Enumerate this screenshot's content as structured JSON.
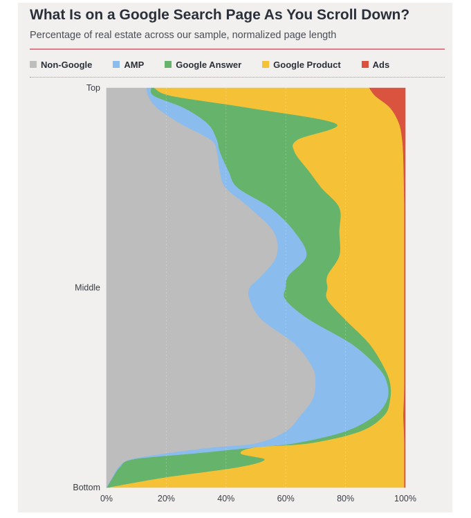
{
  "chart_data": {
    "type": "area",
    "title": "What Is on a Google Search Page As You Scroll Down?",
    "subtitle": "Percentage of real estate across our sample, normalized page length",
    "orientation": "vertical-stacked-100",
    "y_ticks": [
      "Top",
      "Middle",
      "Bottom"
    ],
    "x_ticks": [
      "0%",
      "20%",
      "40%",
      "60%",
      "80%",
      "100%"
    ],
    "xlim": [
      0,
      100
    ],
    "position_unit": "normalized page position (0 = Top, 1 = Bottom)",
    "legend_position": "top",
    "series": [
      {
        "name": "Non-Google",
        "color": "#bdbdbd",
        "points": [
          [
            0,
            13.5
          ],
          [
            0.02,
            14
          ],
          [
            0.05,
            17
          ],
          [
            0.09,
            25
          ],
          [
            0.13,
            35
          ],
          [
            0.16,
            37
          ],
          [
            0.21,
            38
          ],
          [
            0.25,
            40
          ],
          [
            0.3,
            48
          ],
          [
            0.36,
            56
          ],
          [
            0.42,
            57
          ],
          [
            0.47,
            52
          ],
          [
            0.5,
            48
          ],
          [
            0.53,
            48
          ],
          [
            0.58,
            52
          ],
          [
            0.64,
            63
          ],
          [
            0.7,
            69
          ],
          [
            0.74,
            70
          ],
          [
            0.78,
            69
          ],
          [
            0.82,
            65
          ],
          [
            0.86,
            60
          ],
          [
            0.89,
            50
          ],
          [
            0.9,
            36
          ],
          [
            0.915,
            20
          ],
          [
            0.93,
            8
          ],
          [
            0.95,
            4
          ],
          [
            0.975,
            2
          ],
          [
            1,
            0
          ]
        ]
      },
      {
        "name": "AMP",
        "color": "#8bbcee",
        "points": [
          [
            0,
            15
          ],
          [
            0.02,
            16
          ],
          [
            0.05,
            26
          ],
          [
            0.09,
            34
          ],
          [
            0.13,
            37
          ],
          [
            0.16,
            38
          ],
          [
            0.21,
            41
          ],
          [
            0.25,
            44
          ],
          [
            0.3,
            55
          ],
          [
            0.36,
            63
          ],
          [
            0.42,
            67
          ],
          [
            0.47,
            61
          ],
          [
            0.5,
            60
          ],
          [
            0.53,
            60
          ],
          [
            0.58,
            68
          ],
          [
            0.64,
            82
          ],
          [
            0.7,
            91
          ],
          [
            0.74,
            94
          ],
          [
            0.78,
            94
          ],
          [
            0.82,
            90
          ],
          [
            0.86,
            80
          ],
          [
            0.89,
            63
          ],
          [
            0.9,
            50
          ],
          [
            0.915,
            30
          ],
          [
            0.93,
            9
          ],
          [
            0.95,
            4.5
          ],
          [
            0.975,
            2.2
          ],
          [
            1,
            0.2
          ]
        ]
      },
      {
        "name": "Google Answer",
        "color": "#66b36c",
        "points": [
          [
            0,
            16
          ],
          [
            0.02,
            22
          ],
          [
            0.05,
            48
          ],
          [
            0.09,
            77
          ],
          [
            0.13,
            64
          ],
          [
            0.16,
            63
          ],
          [
            0.21,
            68
          ],
          [
            0.25,
            72
          ],
          [
            0.3,
            78
          ],
          [
            0.36,
            78
          ],
          [
            0.42,
            78
          ],
          [
            0.47,
            74
          ],
          [
            0.5,
            74
          ],
          [
            0.53,
            74
          ],
          [
            0.58,
            80
          ],
          [
            0.64,
            88
          ],
          [
            0.7,
            93
          ],
          [
            0.74,
            95
          ],
          [
            0.78,
            95
          ],
          [
            0.82,
            93
          ],
          [
            0.86,
            85
          ],
          [
            0.89,
            68
          ],
          [
            0.9,
            50
          ],
          [
            0.915,
            45
          ],
          [
            0.93,
            53
          ],
          [
            0.95,
            44
          ],
          [
            0.975,
            20
          ],
          [
            1,
            1
          ]
        ]
      },
      {
        "name": "Google Product",
        "color": "#f5c237",
        "points": [
          [
            0,
            88
          ],
          [
            0.02,
            90
          ],
          [
            0.05,
            95
          ],
          [
            0.09,
            98
          ],
          [
            0.13,
            99
          ],
          [
            0.16,
            99.3
          ],
          [
            0.21,
            99.5
          ],
          [
            0.25,
            99.6
          ],
          [
            0.3,
            99.7
          ],
          [
            0.36,
            99.7
          ],
          [
            0.42,
            99.7
          ],
          [
            0.47,
            99.7
          ],
          [
            0.5,
            99.7
          ],
          [
            0.53,
            99.7
          ],
          [
            0.58,
            99.7
          ],
          [
            0.64,
            99.7
          ],
          [
            0.7,
            99.7
          ],
          [
            0.74,
            99.7
          ],
          [
            0.78,
            99.6
          ],
          [
            0.82,
            99.4
          ],
          [
            0.86,
            99.6
          ],
          [
            0.89,
            99.7
          ],
          [
            0.9,
            99.7
          ],
          [
            0.915,
            99.7
          ],
          [
            0.93,
            99.7
          ],
          [
            0.95,
            99.7
          ],
          [
            0.975,
            99.7
          ],
          [
            1,
            99.7
          ]
        ]
      },
      {
        "name": "Ads",
        "color": "#d9533f",
        "points": [
          [
            0,
            100
          ],
          [
            1,
            100
          ]
        ]
      }
    ]
  }
}
